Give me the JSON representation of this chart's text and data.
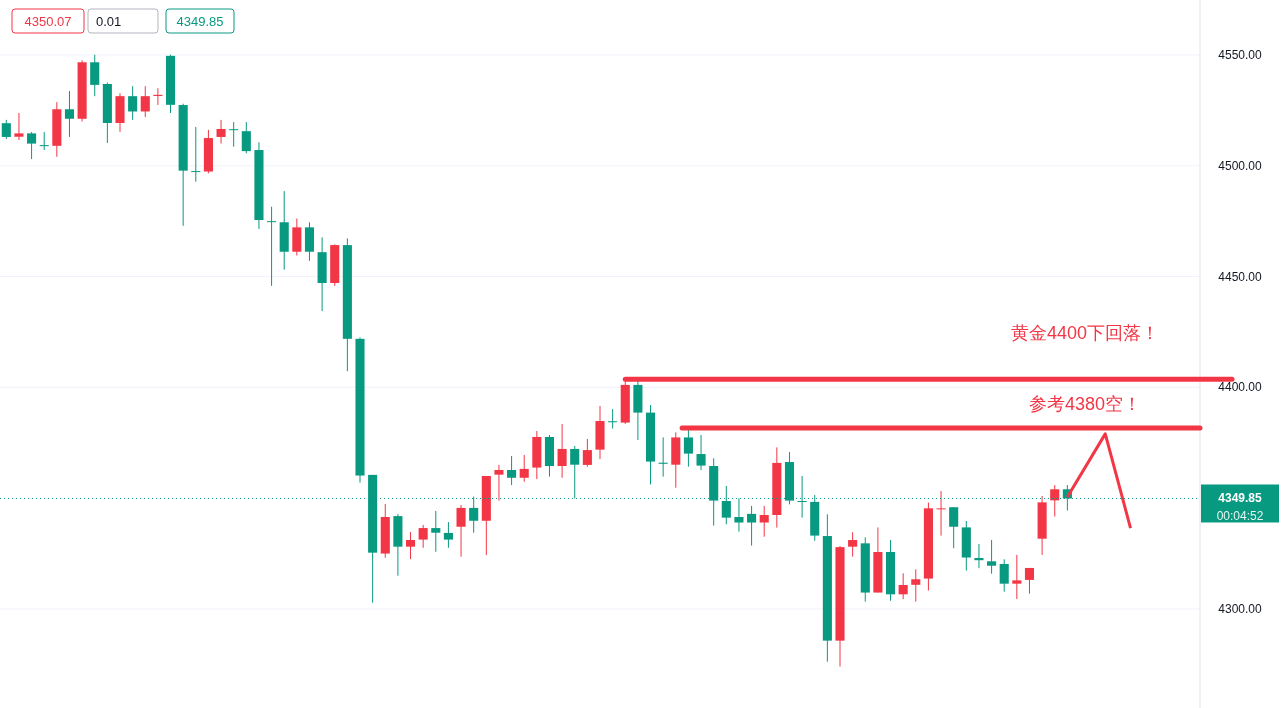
{
  "chart_data": {
    "type": "candlestick",
    "categories": [
      null,
      null,
      null,
      null,
      null,
      null,
      null,
      null,
      null,
      null,
      null,
      null,
      null,
      null,
      null,
      null,
      null,
      null,
      null,
      null,
      null,
      null,
      null,
      null,
      null,
      null,
      null,
      null,
      null,
      null,
      null,
      null,
      null,
      null,
      null,
      null,
      null,
      null,
      null,
      null,
      null,
      null,
      null,
      null,
      null,
      null,
      null,
      null,
      null,
      null,
      null,
      null,
      null,
      null,
      null,
      null,
      null,
      null,
      null,
      null,
      null,
      null,
      null,
      null,
      null,
      null,
      null,
      null,
      null,
      null,
      null,
      null,
      null,
      null,
      null,
      null,
      null,
      null,
      null,
      null,
      null,
      null,
      null,
      null,
      null,
      null,
      null,
      null,
      null,
      null,
      null,
      null,
      null,
      null,
      null
    ],
    "ohlc": [
      [
        4519.2,
        4520.7,
        4512.1,
        4513.0
      ],
      [
        4513.1,
        4523.8,
        4511.6,
        4514.6
      ],
      [
        4514.6,
        4515.2,
        4503.0,
        4510.0
      ],
      [
        4509.3,
        4515.2,
        4507.1,
        4509.2
      ],
      [
        4509.0,
        4528.7,
        4504.0,
        4525.5
      ],
      [
        4525.5,
        4533.7,
        4513.0,
        4521.2
      ],
      [
        4521.2,
        4547.6,
        4520.0,
        4546.7
      ],
      [
        4546.7,
        4550.1,
        4531.4,
        4536.5
      ],
      [
        4536.9,
        4537.5,
        4510.3,
        4519.3
      ],
      [
        4519.3,
        4532.7,
        4515.3,
        4531.4
      ],
      [
        4531.4,
        4535.9,
        4520.7,
        4524.5
      ],
      [
        4524.5,
        4535.9,
        4522.0,
        4531.4
      ],
      [
        4531.5,
        4535.0,
        4527.4,
        4532.0
      ],
      [
        4549.6,
        4550.1,
        4523.8,
        4527.5
      ],
      [
        4527.4,
        4528.0,
        4472.9,
        4497.8
      ],
      [
        4497.6,
        4517.5,
        4492.8,
        4497.3
      ],
      [
        4497.4,
        4516.2,
        4496.6,
        4512.5
      ],
      [
        4513.0,
        4520.7,
        4510.0,
        4516.6
      ],
      [
        4516.5,
        4519.7,
        4508.6,
        4516.3
      ],
      [
        4515.6,
        4519.7,
        4505.6,
        4506.6
      ],
      [
        4507.1,
        4510.6,
        4471.5,
        4475.5
      ],
      [
        4475.0,
        4481.5,
        4445.8,
        4474.7
      ],
      [
        4474.5,
        4488.6,
        4453.1,
        4461.2
      ],
      [
        4461.2,
        4476.2,
        4459.5,
        4472.2
      ],
      [
        4472.2,
        4474.5,
        4457.1,
        4461.2
      ],
      [
        4461.0,
        4467.7,
        4434.4,
        4447.1
      ],
      [
        4447.1,
        4464.5,
        4445.8,
        4464.2
      ],
      [
        4464.2,
        4467.2,
        4407.3,
        4421.9
      ],
      [
        4421.9,
        4422.5,
        4357.0,
        4360.2
      ],
      [
        4360.5,
        4360.5,
        4302.8,
        4325.4
      ],
      [
        4325.0,
        4347.4,
        4323.1,
        4341.5
      ],
      [
        4341.9,
        4342.8,
        4315.0,
        4328.1
      ],
      [
        4328.1,
        4334.7,
        4322.5,
        4331.1
      ],
      [
        4331.3,
        4337.9,
        4327.6,
        4336.5
      ],
      [
        4336.5,
        4344.2,
        4325.8,
        4334.4
      ],
      [
        4334.3,
        4339.2,
        4327.6,
        4331.3
      ],
      [
        4337.1,
        4346.9,
        4323.6,
        4345.6
      ],
      [
        4345.6,
        4350.7,
        4334.4,
        4339.8
      ],
      [
        4339.8,
        4360.0,
        4324.3,
        4360.0
      ],
      [
        4360.6,
        4365.0,
        4348.9,
        4362.7
      ],
      [
        4362.7,
        4369.0,
        4355.9,
        4359.2
      ],
      [
        4359.2,
        4369.5,
        4357.4,
        4363.2
      ],
      [
        4363.8,
        4380.3,
        4358.6,
        4377.6
      ],
      [
        4377.6,
        4378.5,
        4359.7,
        4364.5
      ],
      [
        4364.5,
        4383.5,
        4359.2,
        4372.2
      ],
      [
        4372.2,
        4373.5,
        4349.9,
        4365.1
      ],
      [
        4365.0,
        4376.7,
        4364.2,
        4371.7
      ],
      [
        4371.9,
        4391.6,
        4367.7,
        4384.8
      ],
      [
        4384.7,
        4390.2,
        4381.4,
        4384.6
      ],
      [
        4384.1,
        4402.9,
        4383.5,
        4401.1
      ],
      [
        4401.1,
        4403.8,
        4376.2,
        4388.6
      ],
      [
        4388.6,
        4392.0,
        4356.2,
        4366.5
      ],
      [
        4366.0,
        4377.4,
        4359.7,
        4365.5
      ],
      [
        4365.1,
        4379.7,
        4354.7,
        4377.4
      ],
      [
        4377.4,
        4381.5,
        4364.2,
        4370.1
      ],
      [
        4369.9,
        4378.5,
        4362.7,
        4364.7
      ],
      [
        4364.5,
        4368.0,
        4337.6,
        4348.9
      ],
      [
        4348.7,
        4355.5,
        4338.2,
        4341.2
      ],
      [
        4341.5,
        4349.9,
        4334.9,
        4339.0
      ],
      [
        4342.9,
        4346.5,
        4328.6,
        4339.0
      ],
      [
        4339.0,
        4346.5,
        4332.6,
        4342.4
      ],
      [
        4342.4,
        4372.9,
        4336.7,
        4365.9
      ],
      [
        4366.3,
        4370.8,
        4347.2,
        4348.9
      ],
      [
        4348.7,
        4360.0,
        4341.2,
        4348.4
      ],
      [
        4348.3,
        4351.4,
        4330.8,
        4333.1
      ],
      [
        4332.9,
        4342.7,
        4276.2,
        4285.7
      ],
      [
        4285.7,
        4328.4,
        4274.0,
        4327.9
      ],
      [
        4328.1,
        4334.6,
        4323.6,
        4331.1
      ],
      [
        4329.6,
        4332.3,
        4303.3,
        4307.4
      ],
      [
        4307.4,
        4336.8,
        4307.4,
        4325.7
      ],
      [
        4325.7,
        4331.1,
        4303.7,
        4306.6
      ],
      [
        4306.6,
        4316.1,
        4304.4,
        4310.8
      ],
      [
        4310.9,
        4317.9,
        4303.3,
        4313.4
      ],
      [
        4313.7,
        4348.0,
        4308.3,
        4345.4
      ],
      [
        4345.2,
        4353.2,
        4333.1,
        4345.4
      ],
      [
        4345.9,
        4345.9,
        4327.4,
        4337.1
      ],
      [
        4336.8,
        4339.7,
        4317.3,
        4323.2
      ],
      [
        4323.0,
        4329.3,
        4318.4,
        4322.0
      ],
      [
        4321.5,
        4331.1,
        4315.9,
        4319.5
      ],
      [
        4320.3,
        4322.4,
        4307.8,
        4311.4
      ],
      [
        4311.4,
        4324.4,
        4304.5,
        4312.9
      ],
      [
        4313.1,
        4318.5,
        4306.9,
        4318.5
      ],
      [
        4331.7,
        4351.0,
        4324.4,
        4348.1
      ],
      [
        4349.0,
        4355.9,
        4341.7,
        4354.0
      ],
      [
        4354.0,
        4355.9,
        4344.4,
        4349.85
      ],
      null,
      null,
      null,
      null,
      null,
      null,
      null,
      null,
      null,
      null
    ],
    "series": [
      {
        "type": "line",
        "color": "#f23645",
        "values": [
          null,
          null,
          null,
          null,
          null,
          null,
          null,
          null,
          null,
          null,
          null,
          null,
          null,
          null,
          null,
          null,
          null,
          null,
          null,
          null,
          null,
          null,
          null,
          null,
          null,
          null,
          null,
          null,
          null,
          null,
          null,
          null,
          null,
          null,
          null,
          null,
          null,
          null,
          null,
          null,
          null,
          null,
          null,
          null,
          null,
          null,
          null,
          null,
          null,
          null,
          null,
          null,
          null,
          null,
          null,
          null,
          null,
          null,
          null,
          null,
          null,
          null,
          null,
          null,
          null,
          null,
          null,
          null,
          null,
          null,
          null,
          null,
          null,
          null,
          null,
          null,
          null,
          null,
          null,
          null,
          null,
          null,
          null,
          null,
          4350.5,
          null,
          null,
          4379,
          null,
          4336.5,
          null,
          null,
          null,
          null,
          null
        ]
      }
    ],
    "ylim": [
      4255.3,
      4574.8
    ],
    "yticks": [
      {
        "value": 4300,
        "label": "4300.00"
      },
      {
        "value": 4400,
        "label": "4400.00"
      },
      {
        "value": 4450,
        "label": "4450.00"
      },
      {
        "value": 4500,
        "label": "4500.00"
      },
      {
        "value": 4550,
        "label": "4550.00"
      }
    ],
    "grid": "y",
    "ref_lines": [
      {
        "axis": "y",
        "value": 4403.7,
        "label": "黄金4400下回落！",
        "color": "#f23645",
        "line_style": "solid"
      },
      {
        "axis": "y",
        "value": 4381.7,
        "label": "参考4380空！",
        "color": "#f23645",
        "line_style": "solid"
      },
      {
        "axis": "y",
        "value": 4349.85,
        "label": "4349.85",
        "color": "#089981",
        "line_style": "dotted"
      }
    ],
    "annotations": [
      "4350.07",
      "0.01",
      "4349.85",
      "00:04:52"
    ]
  }
}
